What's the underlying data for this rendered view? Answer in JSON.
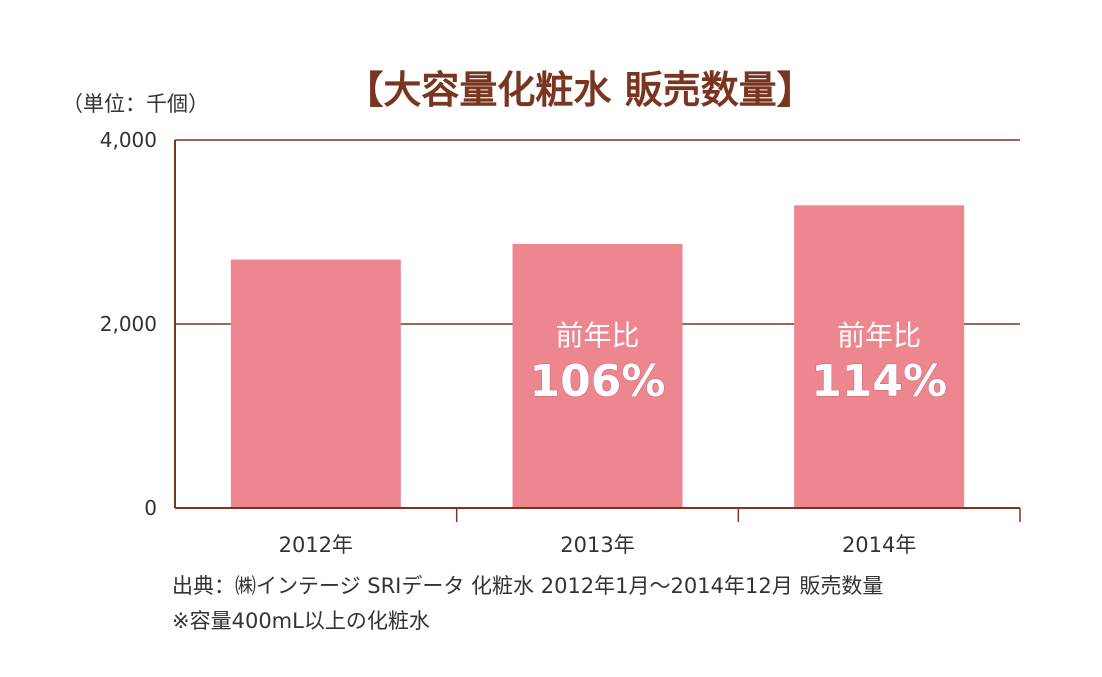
{
  "colors": {
    "title": "#7a3520",
    "axis": "#7a3520",
    "bar": "#ee8690",
    "text": "#333333",
    "annotation": "#ffffff"
  },
  "chart_data": {
    "type": "bar",
    "title": "【大容量化粧水 販売数量】",
    "unit_label": "（単位：千個）",
    "categories": [
      "2012年",
      "2013年",
      "2014年"
    ],
    "values": [
      2700,
      2870,
      3290
    ],
    "ylim": [
      0,
      4000
    ],
    "yticks": [
      "0",
      "2,000",
      "4,000"
    ],
    "ytick_values": [
      0,
      2000,
      4000
    ],
    "grid": true,
    "annotations": [
      {
        "category": "2013年",
        "label": "前年比",
        "value": "106%"
      },
      {
        "category": "2014年",
        "label": "前年比",
        "value": "114%"
      }
    ],
    "source_lines": [
      "出典：㈱インテージ SRIデータ 化粧水 2012年1月〜2014年12月 販売数量",
      "※容量400mL以上の化粧水"
    ]
  }
}
